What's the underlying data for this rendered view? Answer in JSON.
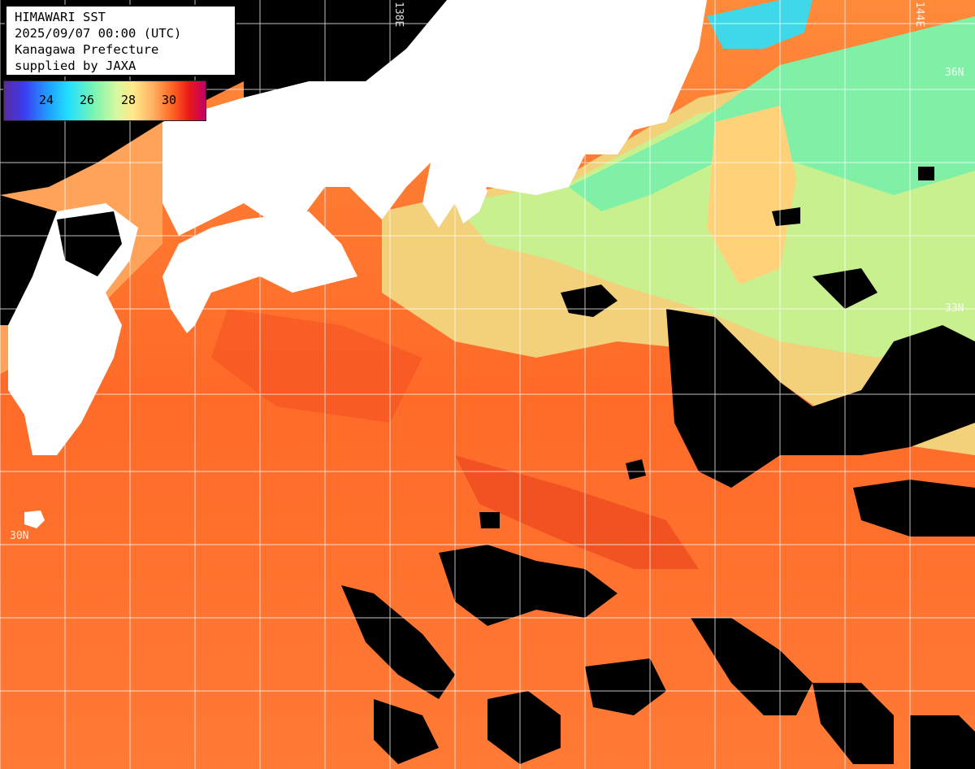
{
  "header": {
    "line1": "HIMAWARI SST",
    "line2": "2025/09/07 00:00 (UTC)",
    "line3": "Kanagawa Prefecture",
    "line4": "supplied by JAXA"
  },
  "legend": {
    "ticks": [
      "24",
      "26",
      "28",
      "30"
    ],
    "colors": [
      "#5a2aa0",
      "#3b3bf0",
      "#1f9fff",
      "#22e0ff",
      "#7cf5b0",
      "#ffe98a",
      "#ffb060",
      "#ff6020",
      "#e81818",
      "#c0006a"
    ]
  },
  "grid_labels": {
    "lon_138": "138E",
    "lon_144": "144E",
    "lat_36": "36N",
    "lat_33": "33N",
    "lat_30": "30N"
  },
  "colors": {
    "land": "#ffffff",
    "cloud": "#000000",
    "warm_sea": "#ff6a2a",
    "cool_sea": "#9af09a",
    "grid": "#ffffff"
  }
}
